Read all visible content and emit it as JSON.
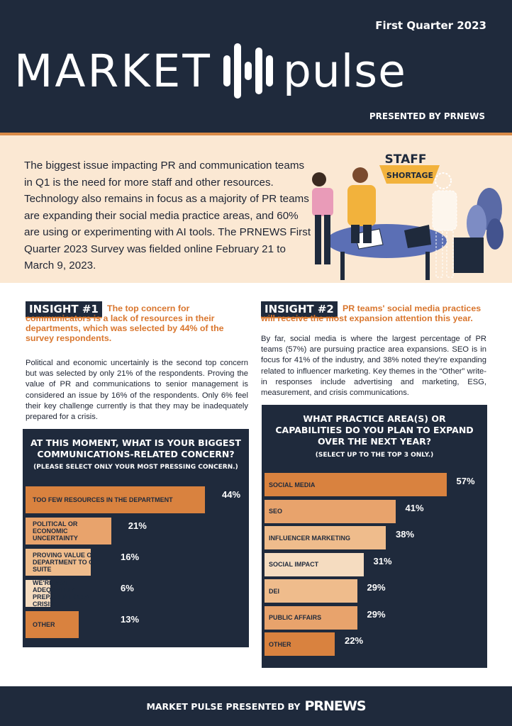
{
  "header": {
    "quarter": "First Quarter 2023",
    "logo_left": "MARKET",
    "logo_right": "pulse",
    "presented_by": "PRESENTED BY PRNEWS"
  },
  "intro": {
    "text": "The biggest issue impacting PR and communication teams in Q1 is the need for more staff and other resources. Technology also remains in focus as a majority of PR teams are expanding their social media practice areas, and 60% are using or experimenting with AI tools. The PRNEWS First Quarter 2023 Survey was fielded online February 21 to March 9, 2023.",
    "illustration_line1": "STAFF",
    "illustration_line2": "SHORTAGE"
  },
  "insight1": {
    "tag": "INSIGHT #1",
    "headline": "The top concern for communicators is a lack of resources in their departments, which was selected by 44% of the survey respondents.",
    "body": "Political and economic uncertainly is the second top concern but was selected by only 21% of the respondents. Proving the value of PR and communications to senior management is considered an issue by 16% of the respondents. Only 6% feel their key challenge currently is that they may be inadequately prepared for a crisis."
  },
  "insight2": {
    "tag": "INSIGHT #2",
    "headline": "PR teams' social media practices will receive the most expansion attention this year.",
    "body": "By far, social media is where the largest percentage of PR teams (57%) are pursuing practice area expansions. SEO is in focus for 41% of the industry, and 38% noted they're expanding related to influencer marketing. Key themes in the “Other” write-in responses include advertising and marketing, ESG, measurement, and crisis communications."
  },
  "chart_data": [
    {
      "type": "bar",
      "title": "AT THIS MOMENT, WHAT IS YOUR BIGGEST COMMUNICATIONS-RELATED CONCERN?",
      "subtitle": "(PLEASE SELECT ONLY YOUR MOST PRESSING CONCERN.)",
      "categories": [
        "TOO FEW RESOURCES IN THE DEPARTMENT",
        "POLITICAL OR ECONOMIC UNCERTAINTY",
        "PROVING VALUE OF DEPARTMENT TO C-SUITE",
        "WE'RE NOT ADEQUATELY PREPARED FOR A CRISIS",
        "OTHER"
      ],
      "values": [
        44,
        21,
        16,
        6,
        13
      ],
      "value_labels": [
        "44%",
        "21%",
        "16%",
        "6%",
        "13%"
      ],
      "colors": [
        "#d9823f",
        "#e8a36c",
        "#efbc8c",
        "#f5dcc0",
        "#d9823f"
      ]
    },
    {
      "type": "bar",
      "title": "WHAT PRACTICE AREA(S) OR CAPABILITIES DO YOU PLAN TO EXPAND OVER THE NEXT YEAR?",
      "subtitle": "(SELECT UP TO THE TOP 3 ONLY.)",
      "categories": [
        "SOCIAL MEDIA",
        "SEO",
        "INFLUENCER MARKETING",
        "SOCIAL IMPACT",
        "DEI",
        "PUBLIC AFFAIRS",
        "OTHER"
      ],
      "values": [
        57,
        41,
        38,
        31,
        29,
        29,
        22
      ],
      "value_labels": [
        "57%",
        "41%",
        "38%",
        "31%",
        "29%",
        "29%",
        "22%"
      ],
      "colors": [
        "#d9823f",
        "#e8a36c",
        "#efbc8c",
        "#f5dcc0",
        "#efbc8c",
        "#e8a36c",
        "#d9823f"
      ]
    }
  ],
  "footer": {
    "text": "MARKET PULSE PRESENTED BY",
    "brand": "PRNEWS"
  }
}
